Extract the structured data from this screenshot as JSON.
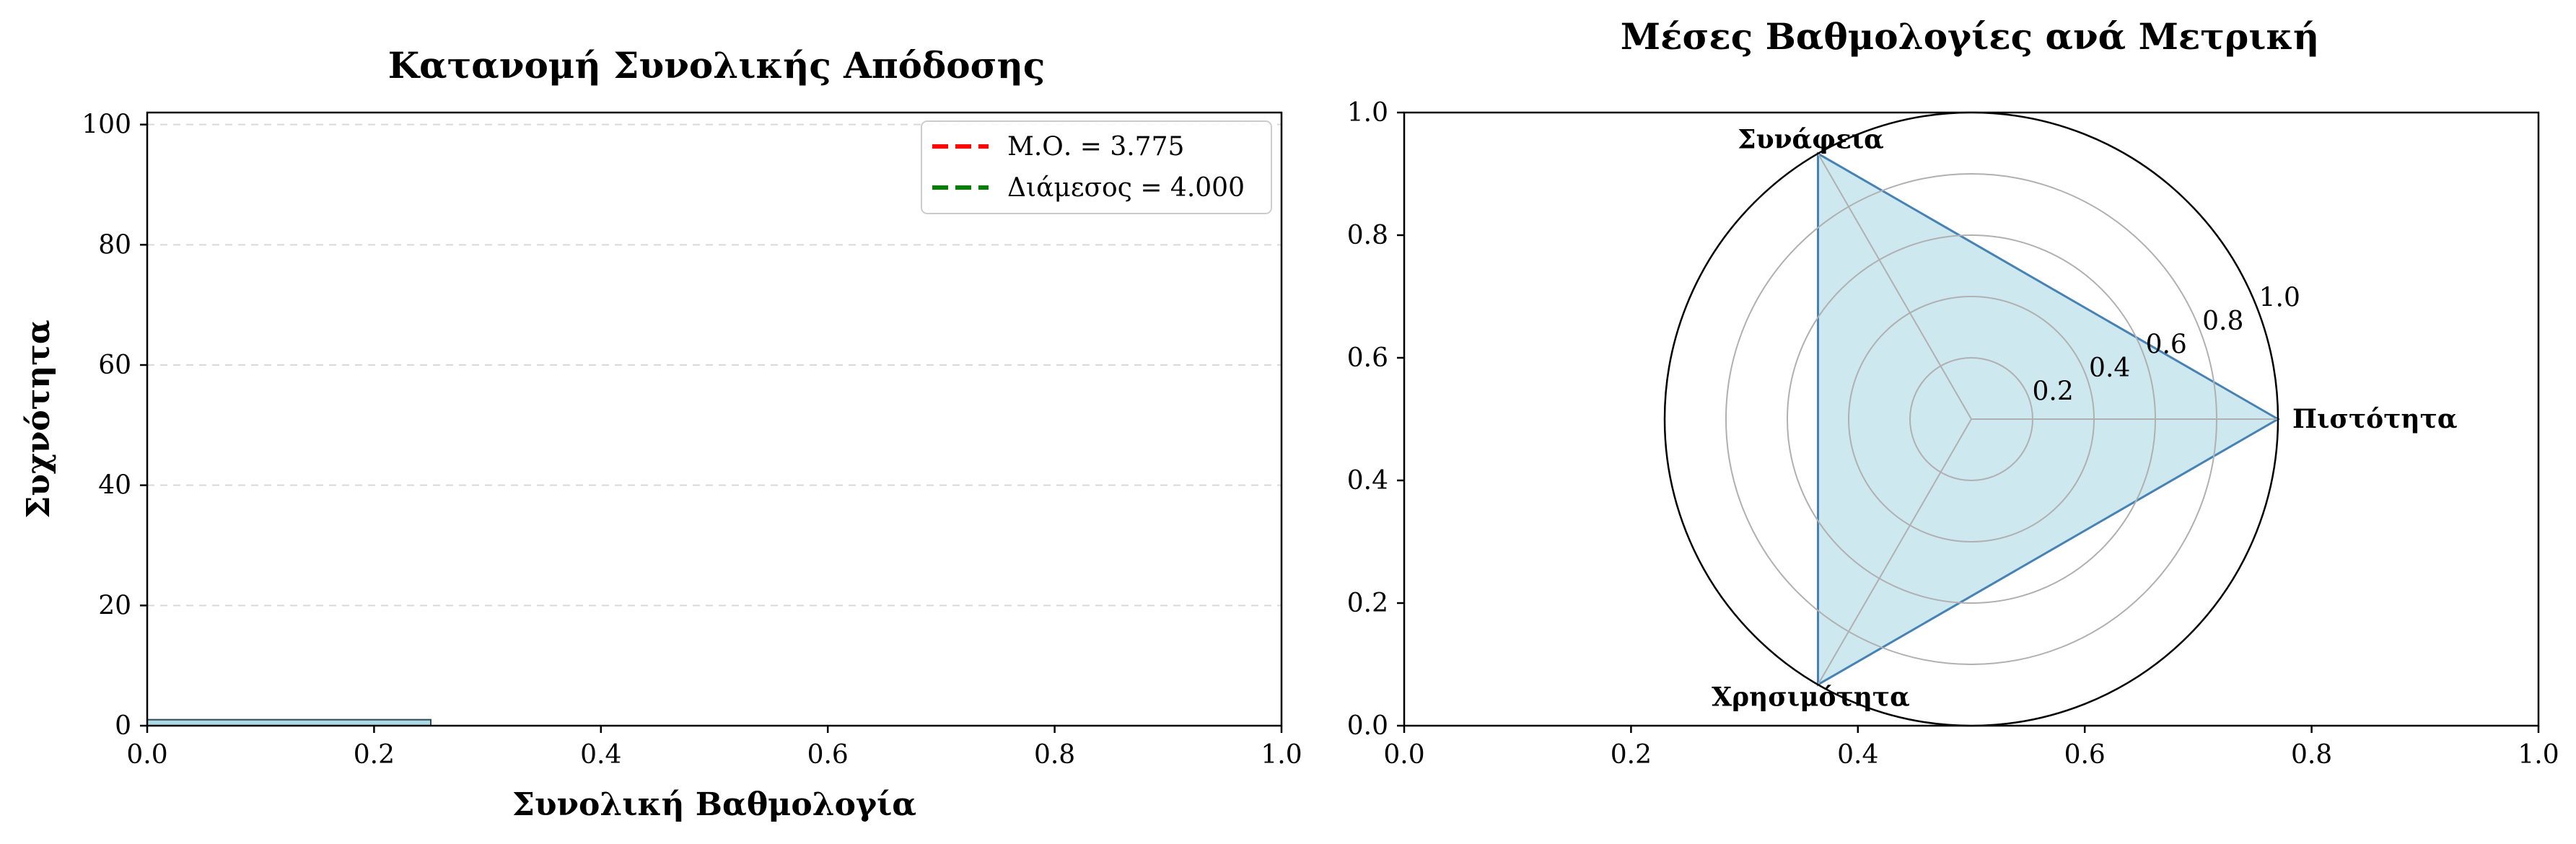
{
  "chart_data": [
    {
      "type": "bar",
      "title": "Κατανομή Συνολικής Απόδοσης",
      "xlabel": "Συνολική Βαθμολογία",
      "ylabel": "Συχνότητα",
      "xlim": [
        0,
        1
      ],
      "ylim": [
        0,
        102
      ],
      "xticks": [
        "0.0",
        "0.2",
        "0.4",
        "0.6",
        "0.8",
        "1.0"
      ],
      "yticks": [
        "0",
        "20",
        "40",
        "60",
        "80",
        "100"
      ],
      "grid": "y-dashed",
      "bins": [
        {
          "x0": 0.0,
          "x1": 0.25,
          "value": 1
        }
      ],
      "bar_color": "#add8e6",
      "reference_lines": [
        {
          "label": "Μ.Ο. = 3.775",
          "value": 3.775,
          "color": "#ff0000",
          "style": "dashed"
        },
        {
          "label": "Διάμεσος = 4.000",
          "value": 4.0,
          "color": "#008000",
          "style": "dashed"
        }
      ],
      "legend_placement": "top-right"
    },
    {
      "type": "radar",
      "title": "Μέσες Βαθμολογίες ανά Μετρική",
      "categories": [
        "Πιστότητα",
        "Συνάφεια",
        "Χρησιμότητα"
      ],
      "values": [
        1.0,
        1.0,
        1.0
      ],
      "rlim": [
        0,
        1
      ],
      "rticks": [
        "0.2",
        "0.4",
        "0.6",
        "0.8",
        "1.0"
      ],
      "fill_color": "#add8e6",
      "xlim": [
        0,
        1
      ],
      "ylim": [
        0,
        1
      ],
      "xticks": [
        "0.0",
        "0.2",
        "0.4",
        "0.6",
        "0.8",
        "1.0"
      ],
      "yticks": [
        "0.0",
        "0.2",
        "0.4",
        "0.6",
        "0.8",
        "1.0"
      ]
    }
  ]
}
